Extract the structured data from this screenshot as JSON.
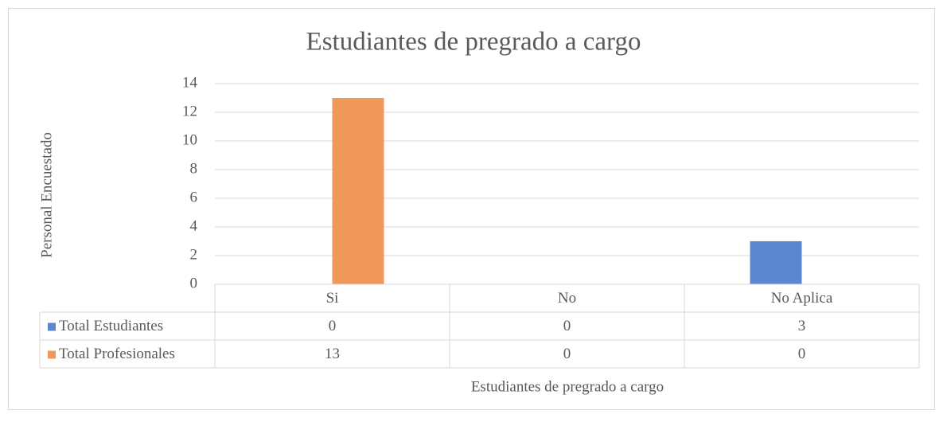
{
  "chart_data": {
    "type": "bar",
    "title": "Estudiantes de pregrado a cargo",
    "x_label": "Estudiantes de pregrado a cargo",
    "y_label": "Personal Encuestado",
    "categories": [
      "Si",
      "No",
      "No Aplica"
    ],
    "series": [
      {
        "name": "Total Estudiantes",
        "color": "#5b87d1",
        "values": [
          0,
          0,
          3
        ]
      },
      {
        "name": "Total Profesionales",
        "color": "#f0985a",
        "values": [
          13,
          0,
          0
        ]
      }
    ],
    "ylim": [
      0,
      14
    ],
    "yticks": [
      0,
      2,
      4,
      6,
      8,
      10,
      12,
      14
    ],
    "grid": true,
    "data_table": true
  }
}
